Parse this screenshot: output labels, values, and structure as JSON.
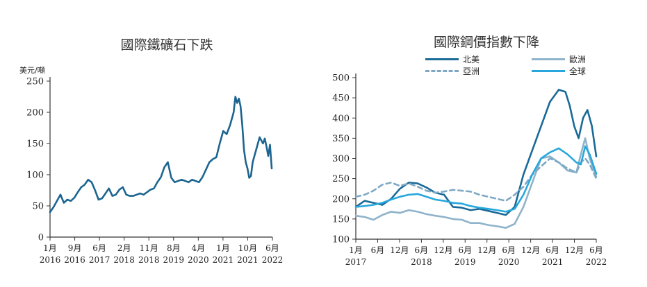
{
  "chart_data": [
    {
      "type": "line",
      "title": "國際鐵礦石下跌",
      "ylabel": "美元/噸",
      "ylim": [
        0,
        250
      ],
      "yticks": [
        "0",
        "50",
        "100",
        "150",
        "200",
        "250"
      ],
      "xticks": [
        {
          "month": "1月",
          "year": "2016"
        },
        {
          "month": "9月",
          "year": "2016"
        },
        {
          "month": "6月",
          "year": "2017"
        },
        {
          "month": "2月",
          "year": "2018"
        },
        {
          "month": "11月",
          "year": "2018"
        },
        {
          "month": "8月",
          "year": "2019"
        },
        {
          "month": "4月",
          "year": "2020"
        },
        {
          "month": "1月",
          "year": "2021"
        },
        {
          "month": "10月",
          "year": "2021"
        },
        {
          "month": "6月",
          "year": "2022"
        }
      ],
      "x_range": [
        2016.0,
        2022.42
      ],
      "series": [
        {
          "name": "鐵礦石",
          "color": "#1c6590",
          "x": [
            2016.0,
            2016.1,
            2016.2,
            2016.3,
            2016.4,
            2016.5,
            2016.6,
            2016.7,
            2016.8,
            2016.9,
            2017.0,
            2017.1,
            2017.2,
            2017.3,
            2017.4,
            2017.5,
            2017.6,
            2017.7,
            2017.8,
            2017.9,
            2018.0,
            2018.1,
            2018.2,
            2018.3,
            2018.4,
            2018.5,
            2018.6,
            2018.7,
            2018.8,
            2018.9,
            2019.0,
            2019.1,
            2019.2,
            2019.3,
            2019.4,
            2019.5,
            2019.6,
            2019.7,
            2019.8,
            2019.9,
            2020.0,
            2020.1,
            2020.2,
            2020.3,
            2020.4,
            2020.5,
            2020.6,
            2020.7,
            2020.8,
            2020.9,
            2021.0,
            2021.1,
            2021.2,
            2021.3,
            2021.35,
            2021.4,
            2021.45,
            2021.5,
            2021.55,
            2021.6,
            2021.65,
            2021.7,
            2021.75,
            2021.8,
            2021.85,
            2021.9,
            2021.95,
            2022.0,
            2022.05,
            2022.1,
            2022.15,
            2022.2,
            2022.25,
            2022.3,
            2022.35,
            2022.4
          ],
          "values": [
            40,
            48,
            58,
            68,
            55,
            60,
            58,
            63,
            72,
            80,
            84,
            92,
            88,
            75,
            60,
            62,
            70,
            78,
            66,
            68,
            76,
            80,
            68,
            66,
            66,
            68,
            70,
            68,
            72,
            76,
            78,
            88,
            96,
            112,
            120,
            95,
            88,
            90,
            92,
            90,
            88,
            92,
            90,
            88,
            96,
            108,
            120,
            125,
            128,
            150,
            170,
            165,
            180,
            200,
            225,
            215,
            222,
            210,
            180,
            140,
            120,
            110,
            95,
            98,
            120,
            130,
            140,
            150,
            160,
            155,
            150,
            158,
            145,
            130,
            148,
            110
          ]
        }
      ]
    },
    {
      "type": "line",
      "title": "國際鋼價指數下降",
      "ylim": [
        100,
        500
      ],
      "yticks": [
        "100",
        "150",
        "200",
        "250",
        "300",
        "350",
        "400",
        "450",
        "500"
      ],
      "xticks": [
        {
          "month": "1月",
          "year": "2017"
        },
        {
          "month": "6月",
          "year": ""
        },
        {
          "month": "12月",
          "year": ""
        },
        {
          "month": "6月",
          "year": "2018"
        },
        {
          "month": "12月",
          "year": ""
        },
        {
          "month": "6月",
          "year": "2019"
        },
        {
          "month": "12月",
          "year": ""
        },
        {
          "month": "6月",
          "year": "2020"
        },
        {
          "month": "12月",
          "year": ""
        },
        {
          "month": "6月",
          "year": "2021"
        },
        {
          "month": "12月",
          "year": ""
        },
        {
          "month": "6月",
          "year": "2022"
        }
      ],
      "x_range": [
        2017.0,
        2022.45
      ],
      "legend": [
        "北美",
        "歐洲",
        "亞洲",
        "全球"
      ],
      "series": [
        {
          "name": "北美",
          "color": "#1a6a97",
          "style": "solid",
          "x": [
            2017.0,
            2017.2,
            2017.4,
            2017.6,
            2017.8,
            2018.0,
            2018.2,
            2018.4,
            2018.6,
            2018.8,
            2019.0,
            2019.2,
            2019.4,
            2019.6,
            2019.8,
            2020.0,
            2020.2,
            2020.4,
            2020.6,
            2020.8,
            2021.0,
            2021.2,
            2021.4,
            2021.6,
            2021.75,
            2021.85,
            2021.95,
            2022.05,
            2022.15,
            2022.25,
            2022.35,
            2022.45
          ],
          "values": [
            180,
            195,
            190,
            185,
            200,
            225,
            240,
            238,
            228,
            215,
            210,
            180,
            178,
            172,
            175,
            170,
            165,
            160,
            180,
            260,
            320,
            380,
            440,
            470,
            465,
            430,
            380,
            350,
            400,
            420,
            380,
            305
          ]
        },
        {
          "name": "歐洲",
          "color": "#8eb3ca",
          "style": "solid",
          "x": [
            2017.0,
            2017.2,
            2017.4,
            2017.6,
            2017.8,
            2018.0,
            2018.2,
            2018.4,
            2018.6,
            2018.8,
            2019.0,
            2019.2,
            2019.4,
            2019.6,
            2019.8,
            2020.0,
            2020.2,
            2020.4,
            2020.6,
            2020.8,
            2021.0,
            2021.2,
            2021.4,
            2021.6,
            2021.8,
            2022.0,
            2022.1,
            2022.2,
            2022.3,
            2022.45
          ],
          "values": [
            158,
            155,
            148,
            160,
            168,
            165,
            172,
            168,
            162,
            158,
            155,
            150,
            148,
            140,
            140,
            135,
            132,
            128,
            138,
            180,
            240,
            300,
            305,
            290,
            270,
            265,
            310,
            350,
            300,
            255
          ]
        },
        {
          "name": "亞洲",
          "color": "#7fa8c4",
          "style": "dashed",
          "x": [
            2017.0,
            2017.2,
            2017.4,
            2017.6,
            2017.8,
            2018.0,
            2018.2,
            2018.4,
            2018.6,
            2018.8,
            2019.0,
            2019.2,
            2019.4,
            2019.6,
            2019.8,
            2020.0,
            2020.2,
            2020.4,
            2020.6,
            2020.8,
            2021.0,
            2021.2,
            2021.4,
            2021.6,
            2021.8,
            2022.0,
            2022.1,
            2022.2,
            2022.3,
            2022.45
          ],
          "values": [
            205,
            210,
            220,
            235,
            240,
            232,
            238,
            230,
            220,
            215,
            218,
            222,
            220,
            218,
            210,
            205,
            200,
            195,
            210,
            230,
            260,
            280,
            300,
            290,
            275,
            265,
            290,
            300,
            285,
            250
          ]
        },
        {
          "name": "全球",
          "color": "#27a7dc",
          "style": "solid",
          "x": [
            2017.0,
            2017.2,
            2017.4,
            2017.6,
            2017.8,
            2018.0,
            2018.2,
            2018.4,
            2018.6,
            2018.8,
            2019.0,
            2019.2,
            2019.4,
            2019.6,
            2019.8,
            2020.0,
            2020.2,
            2020.4,
            2020.6,
            2020.8,
            2021.0,
            2021.2,
            2021.4,
            2021.6,
            2021.8,
            2022.0,
            2022.1,
            2022.2,
            2022.3,
            2022.45
          ],
          "values": [
            180,
            182,
            185,
            190,
            198,
            205,
            210,
            212,
            205,
            198,
            195,
            190,
            188,
            182,
            178,
            175,
            172,
            168,
            175,
            210,
            260,
            300,
            315,
            325,
            310,
            290,
            285,
            330,
            310,
            262
          ]
        }
      ]
    }
  ]
}
